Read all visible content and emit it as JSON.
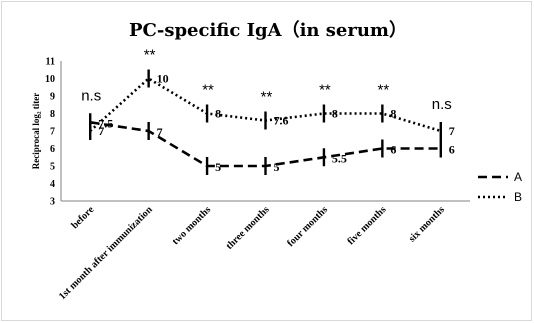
{
  "chart_data": {
    "type": "line",
    "title": "PC-specific IgA（in serum）",
    "ylabel": "Reciprocal log₂ titer",
    "ylim": [
      3,
      11
    ],
    "yticks": [
      "3",
      "4",
      "5",
      "6",
      "7",
      "8",
      "9",
      "10",
      "11"
    ],
    "categories": [
      "before",
      "1st month after immunization",
      "two months",
      "three months",
      "four months",
      "five months",
      "six months"
    ],
    "series": [
      {
        "name": "A",
        "style": "dashed",
        "values": [
          7.5,
          7,
          5,
          5,
          5.5,
          6,
          6
        ],
        "labels": [
          "7.5",
          "7",
          "5",
          "5",
          "5.5",
          "6",
          "6"
        ]
      },
      {
        "name": "B",
        "style": "dotted",
        "values": [
          7,
          10,
          8,
          7.6,
          8,
          8,
          7
        ],
        "labels": [
          "7",
          "10",
          "8",
          "7.6",
          "8",
          "8",
          "7"
        ]
      }
    ],
    "significance": [
      "n.s",
      "**",
      "**",
      "**",
      "**",
      "**",
      "n.s"
    ],
    "legend_position": "right",
    "grid": false,
    "colors": {
      "line": "#000000",
      "axis": "#808080",
      "frame": "#d9d9d9"
    }
  }
}
